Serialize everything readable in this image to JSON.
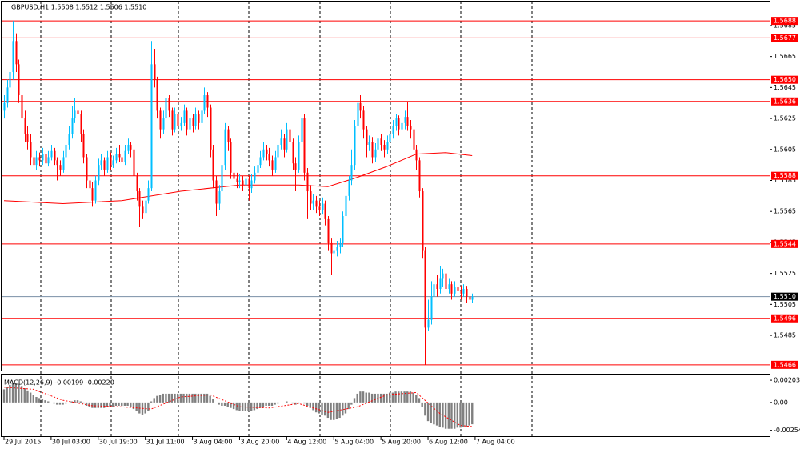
{
  "chart_data": {
    "type": "candlestick",
    "title": "GBPUSD,H1  1.5508 1.5512 1.5506 1.5510",
    "up_color": "#00bfff",
    "down_color": "#ff0000",
    "xlim": [
      -1.36,
      260
    ],
    "ylim": [
      1.54623,
      1.57015
    ],
    "yticks": [
      1.5685,
      1.5665,
      1.5645,
      1.5625,
      1.5605,
      1.5585,
      1.5565,
      1.5545,
      1.5525,
      1.5505,
      1.5485
    ],
    "xticks": [
      {
        "value": 0,
        "label": "29 Jul 2015"
      },
      {
        "value": 16,
        "label": "30 Jul 03:00"
      },
      {
        "value": 32,
        "label": "30 Jul 19:00"
      },
      {
        "value": 48,
        "label": "31 Jul 11:00"
      },
      {
        "value": 64,
        "label": "3 Aug 04:00"
      },
      {
        "value": 80,
        "label": "3 Aug 20:00"
      },
      {
        "value": 96,
        "label": "4 Aug 12:00"
      },
      {
        "value": 112,
        "label": "5 Aug 04:00"
      },
      {
        "value": 128,
        "label": "5 Aug 20:00"
      },
      {
        "value": 144,
        "label": "6 Aug 12:00"
      },
      {
        "value": 160,
        "label": "7 Aug 04:00"
      }
    ],
    "levels": [
      {
        "value": 1.5688,
        "label": "1.5688"
      },
      {
        "value": 1.5677,
        "label": "1.5677"
      },
      {
        "value": 1.565,
        "label": "1.5650"
      },
      {
        "value": 1.5636,
        "label": "1.5636"
      },
      {
        "value": 1.5588,
        "label": "1.5588"
      },
      {
        "value": 1.5544,
        "label": "1.5544"
      },
      {
        "value": 1.5496,
        "label": "1.5496"
      },
      {
        "value": 1.5466,
        "label": "1.5466"
      }
    ],
    "level_color": "#ff0000",
    "current": {
      "value": 1.551,
      "label": "1.5510"
    },
    "current_color": "#7a8fa6",
    "candles": [
      [
        1.563,
        1.564,
        1.5625,
        1.5635
      ],
      [
        1.5635,
        1.565,
        1.5632,
        1.5645
      ],
      [
        1.5645,
        1.5662,
        1.564,
        1.5655
      ],
      [
        1.5655,
        1.5688,
        1.565,
        1.5675
      ],
      [
        1.5675,
        1.568,
        1.5655,
        1.566
      ],
      [
        1.566,
        1.5663,
        1.5635,
        1.564
      ],
      [
        1.564,
        1.5645,
        1.562,
        1.5625
      ],
      [
        1.5625,
        1.563,
        1.561,
        1.5615
      ],
      [
        1.5615,
        1.562,
        1.5605,
        1.561
      ],
      [
        1.561,
        1.5615,
        1.5595,
        1.56
      ],
      [
        1.56,
        1.5605,
        1.559,
        1.5595
      ],
      [
        1.5595,
        1.5604,
        1.5592,
        1.56
      ],
      [
        1.56,
        1.5603,
        1.5594,
        1.5598
      ],
      [
        1.5598,
        1.5606,
        1.5595,
        1.5602
      ],
      [
        1.5602,
        1.5605,
        1.5592,
        1.5596
      ],
      [
        1.5596,
        1.5604,
        1.5594,
        1.56
      ],
      [
        1.56,
        1.5608,
        1.5598,
        1.5604
      ],
      [
        1.5604,
        1.5606,
        1.5595,
        1.5598
      ],
      [
        1.5598,
        1.56,
        1.5585,
        1.5595
      ],
      [
        1.5595,
        1.5598,
        1.5588,
        1.5592
      ],
      [
        1.5592,
        1.5604,
        1.559,
        1.56
      ],
      [
        1.56,
        1.5612,
        1.5598,
        1.5608
      ],
      [
        1.5608,
        1.562,
        1.5605,
        1.5615
      ],
      [
        1.5615,
        1.5633,
        1.5612,
        1.5625
      ],
      [
        1.5625,
        1.5638,
        1.5622,
        1.563
      ],
      [
        1.563,
        1.5635,
        1.5622,
        1.5628
      ],
      [
        1.5628,
        1.563,
        1.561,
        1.5615
      ],
      [
        1.5615,
        1.5618,
        1.5596,
        1.56
      ],
      [
        1.56,
        1.5602,
        1.558,
        1.5585
      ],
      [
        1.5585,
        1.559,
        1.5562,
        1.558
      ],
      [
        1.558,
        1.5584,
        1.5568,
        1.5572
      ],
      [
        1.5572,
        1.5588,
        1.557,
        1.5585
      ],
      [
        1.5585,
        1.5599,
        1.5582,
        1.5595
      ],
      [
        1.5595,
        1.5602,
        1.5592,
        1.5598
      ],
      [
        1.5598,
        1.56,
        1.5588,
        1.5592
      ],
      [
        1.5592,
        1.5604,
        1.559,
        1.56
      ],
      [
        1.56,
        1.5603,
        1.5592,
        1.5595
      ],
      [
        1.5595,
        1.5601,
        1.5593,
        1.5598
      ],
      [
        1.5598,
        1.5606,
        1.5596,
        1.5602
      ],
      [
        1.5602,
        1.5608,
        1.5597,
        1.56
      ],
      [
        1.56,
        1.5603,
        1.5593,
        1.5597
      ],
      [
        1.5597,
        1.5608,
        1.5595,
        1.5604
      ],
      [
        1.5604,
        1.5612,
        1.5602,
        1.5608
      ],
      [
        1.5608,
        1.561,
        1.56,
        1.5605
      ],
      [
        1.5605,
        1.5607,
        1.5584,
        1.5588
      ],
      [
        1.5588,
        1.559,
        1.5572,
        1.5578
      ],
      [
        1.5578,
        1.558,
        1.5555,
        1.5568
      ],
      [
        1.5568,
        1.5572,
        1.556,
        1.5564
      ],
      [
        1.5564,
        1.5576,
        1.5562,
        1.5572
      ],
      [
        1.5572,
        1.5585,
        1.557,
        1.558
      ],
      [
        1.558,
        1.5675,
        1.5578,
        1.566
      ],
      [
        1.566,
        1.567,
        1.5645,
        1.565
      ],
      [
        1.565,
        1.5652,
        1.5625,
        1.563
      ],
      [
        1.563,
        1.5632,
        1.5612,
        1.5618
      ],
      [
        1.5618,
        1.563,
        1.5615,
        1.5625
      ],
      [
        1.5625,
        1.5642,
        1.5622,
        1.5638
      ],
      [
        1.5638,
        1.564,
        1.5626,
        1.563
      ],
      [
        1.563,
        1.5632,
        1.5614,
        1.5618
      ],
      [
        1.5618,
        1.5632,
        1.5616,
        1.5628
      ],
      [
        1.5628,
        1.563,
        1.5616,
        1.562
      ],
      [
        1.562,
        1.5626,
        1.5617,
        1.5622
      ],
      [
        1.5622,
        1.5634,
        1.562,
        1.563
      ],
      [
        1.563,
        1.5632,
        1.5614,
        1.5618
      ],
      [
        1.5618,
        1.563,
        1.5616,
        1.5625
      ],
      [
        1.5625,
        1.5628,
        1.5616,
        1.562
      ],
      [
        1.562,
        1.5632,
        1.5618,
        1.5628
      ],
      [
        1.5628,
        1.563,
        1.5618,
        1.5622
      ],
      [
        1.5622,
        1.5634,
        1.562,
        1.563
      ],
      [
        1.563,
        1.5645,
        1.5628,
        1.564
      ],
      [
        1.564,
        1.5642,
        1.5626,
        1.5632
      ],
      [
        1.5632,
        1.5634,
        1.56,
        1.5605
      ],
      [
        1.5605,
        1.5608,
        1.558,
        1.5585
      ],
      [
        1.5585,
        1.5588,
        1.5562,
        1.557
      ],
      [
        1.557,
        1.5582,
        1.5566,
        1.5578
      ],
      [
        1.5578,
        1.56,
        1.5576,
        1.5595
      ],
      [
        1.5595,
        1.5622,
        1.5592,
        1.5618
      ],
      [
        1.5618,
        1.562,
        1.5604,
        1.561
      ],
      [
        1.561,
        1.5612,
        1.5586,
        1.559
      ],
      [
        1.559,
        1.5593,
        1.5582,
        1.5586
      ],
      [
        1.5586,
        1.559,
        1.558,
        1.5584
      ],
      [
        1.5584,
        1.5589,
        1.558,
        1.5585
      ],
      [
        1.5585,
        1.5588,
        1.5578,
        1.5582
      ],
      [
        1.5582,
        1.559,
        1.558,
        1.5586
      ],
      [
        1.5586,
        1.5588,
        1.5572,
        1.558
      ],
      [
        1.558,
        1.5589,
        1.5577,
        1.5585
      ],
      [
        1.5585,
        1.5594,
        1.5583,
        1.559
      ],
      [
        1.559,
        1.5599,
        1.5588,
        1.5595
      ],
      [
        1.5595,
        1.5604,
        1.5593,
        1.56
      ],
      [
        1.56,
        1.561,
        1.5598,
        1.5605
      ],
      [
        1.5605,
        1.5608,
        1.5598,
        1.5602
      ],
      [
        1.5602,
        1.5606,
        1.5594,
        1.5598
      ],
      [
        1.5598,
        1.5601,
        1.5588,
        1.5592
      ],
      [
        1.5592,
        1.5604,
        1.559,
        1.56
      ],
      [
        1.56,
        1.5612,
        1.5598,
        1.5608
      ],
      [
        1.5608,
        1.5618,
        1.5605,
        1.5612
      ],
      [
        1.5612,
        1.5615,
        1.56,
        1.5605
      ],
      [
        1.5605,
        1.5622,
        1.5603,
        1.5618
      ],
      [
        1.5618,
        1.5621,
        1.5605,
        1.561
      ],
      [
        1.561,
        1.5612,
        1.5592,
        1.5596
      ],
      [
        1.5596,
        1.56,
        1.5578,
        1.5592
      ],
      [
        1.5592,
        1.5614,
        1.559,
        1.561
      ],
      [
        1.561,
        1.5635,
        1.5608,
        1.5625
      ],
      [
        1.5625,
        1.5628,
        1.5585,
        1.559
      ],
      [
        1.559,
        1.5593,
        1.556,
        1.5578
      ],
      [
        1.5578,
        1.5582,
        1.5566,
        1.557
      ],
      [
        1.557,
        1.5576,
        1.5566,
        1.5572
      ],
      [
        1.5572,
        1.5575,
        1.5564,
        1.5568
      ],
      [
        1.5568,
        1.5572,
        1.5562,
        1.5566
      ],
      [
        1.5566,
        1.5574,
        1.5563,
        1.557
      ],
      [
        1.557,
        1.5572,
        1.5556,
        1.556
      ],
      [
        1.556,
        1.5562,
        1.554,
        1.5545
      ],
      [
        1.5545,
        1.5548,
        1.5524,
        1.5538
      ],
      [
        1.5538,
        1.5544,
        1.5534,
        1.554
      ],
      [
        1.554,
        1.5546,
        1.5536,
        1.5542
      ],
      [
        1.5542,
        1.5548,
        1.5538,
        1.5545
      ],
      [
        1.5545,
        1.5565,
        1.5542,
        1.5562
      ],
      [
        1.5562,
        1.5578,
        1.556,
        1.5575
      ],
      [
        1.5575,
        1.5588,
        1.5572,
        1.5585
      ],
      [
        1.5585,
        1.5605,
        1.5582,
        1.5595
      ],
      [
        1.5595,
        1.5624,
        1.5592,
        1.562
      ],
      [
        1.562,
        1.565,
        1.5618,
        1.5635
      ],
      [
        1.5635,
        1.564,
        1.5625,
        1.563
      ],
      [
        1.563,
        1.5633,
        1.5612,
        1.5618
      ],
      [
        1.5618,
        1.562,
        1.56,
        1.5608
      ],
      [
        1.5608,
        1.5614,
        1.5604,
        1.561
      ],
      [
        1.561,
        1.5613,
        1.5596,
        1.56
      ],
      [
        1.56,
        1.5609,
        1.5597,
        1.5605
      ],
      [
        1.5605,
        1.5616,
        1.5602,
        1.5612
      ],
      [
        1.5612,
        1.5615,
        1.5604,
        1.5608
      ],
      [
        1.5608,
        1.5611,
        1.56,
        1.5605
      ],
      [
        1.5605,
        1.5614,
        1.5602,
        1.561
      ],
      [
        1.561,
        1.5619,
        1.5607,
        1.5615
      ],
      [
        1.5615,
        1.5624,
        1.5612,
        1.562
      ],
      [
        1.562,
        1.5628,
        1.5617,
        1.5625
      ],
      [
        1.5625,
        1.5627,
        1.5614,
        1.5618
      ],
      [
        1.5618,
        1.5626,
        1.5615,
        1.5622
      ],
      [
        1.5622,
        1.563,
        1.5618,
        1.5626
      ],
      [
        1.5626,
        1.5636,
        1.5617,
        1.562
      ],
      [
        1.562,
        1.5624,
        1.5612,
        1.5618
      ],
      [
        1.5618,
        1.562,
        1.56,
        1.5605
      ],
      [
        1.5605,
        1.5608,
        1.5592,
        1.5598
      ],
      [
        1.5598,
        1.56,
        1.5574,
        1.5578
      ],
      [
        1.5578,
        1.558,
        1.5535,
        1.554
      ],
      [
        1.554,
        1.5542,
        1.5466,
        1.549
      ],
      [
        1.549,
        1.5508,
        1.5488,
        1.5495
      ],
      [
        1.5495,
        1.552,
        1.5492,
        1.551
      ],
      [
        1.551,
        1.553,
        1.5506,
        1.5518
      ],
      [
        1.5518,
        1.5524,
        1.551,
        1.5515
      ],
      [
        1.5515,
        1.553,
        1.5512,
        1.5522
      ],
      [
        1.5522,
        1.5528,
        1.5516,
        1.5525
      ],
      [
        1.5525,
        1.5527,
        1.5511,
        1.5515
      ],
      [
        1.5515,
        1.5522,
        1.5512,
        1.5518
      ],
      [
        1.5518,
        1.552,
        1.5508,
        1.5512
      ],
      [
        1.5512,
        1.552,
        1.551,
        1.5516
      ],
      [
        1.5516,
        1.5518,
        1.551,
        1.5514
      ],
      [
        1.5514,
        1.5517,
        1.5508,
        1.5512
      ],
      [
        1.5512,
        1.5518,
        1.551,
        1.5515
      ],
      [
        1.5515,
        1.5517,
        1.5506,
        1.551
      ],
      [
        1.551,
        1.5514,
        1.5496,
        1.5508
      ],
      [
        1.5508,
        1.5512,
        1.5506,
        1.551
      ]
    ],
    "ma": {
      "color": "#ff0000",
      "x": [
        0,
        20,
        40,
        60,
        80,
        100,
        110,
        120,
        130,
        140,
        150,
        159
      ],
      "values": [
        1.5572,
        1.557,
        1.5572,
        1.5578,
        1.5582,
        1.5582,
        1.5581,
        1.5587,
        1.5594,
        1.5602,
        1.5603,
        1.5601
      ]
    },
    "macd": {
      "label": "MACD(12,26,9) -0.00199 -0.00220",
      "color": "#808080",
      "y2lim": [
        -0.00315,
        0.00262
      ],
      "y2ticks": [
        0.00203,
        {
          "value": 0,
          "label": "0.00"
        },
        -0.00254
      ],
      "histogram": [
        0.0012,
        0.0014,
        0.0016,
        0.0018,
        0.0018,
        0.0017,
        0.0015,
        0.0013,
        0.0011,
        0.0009,
        0.0007,
        0.0005,
        0.0004,
        0.0003,
        0.0002,
        0.0001,
        0,
        -0.0001,
        -0.0002,
        -0.0002,
        -0.0002,
        -0.0001,
        0,
        0.0001,
        0.0002,
        0.0002,
        0.0001,
        -0.0001,
        -0.0003,
        -0.0004,
        -0.0005,
        -0.0005,
        -0.0005,
        -0.0005,
        -0.0005,
        -0.0004,
        -0.0004,
        -0.0004,
        -0.0003,
        -0.0003,
        -0.0003,
        -0.0003,
        -0.0003,
        -0.0004,
        -0.0006,
        -0.0008,
        -0.001,
        -0.0011,
        -0.001,
        -0.0008,
        0.0001,
        0.0004,
        0.0006,
        0.0007,
        0.0008,
        0.0008,
        0.0008,
        0.0008,
        0.0008,
        0.0008,
        0.0008,
        0.0008,
        0.0008,
        0.0008,
        0.0008,
        0.0008,
        0.0008,
        0.0008,
        0.0008,
        0.0008,
        0.0006,
        0.0003,
        0,
        -0.0002,
        -0.0003,
        -0.0003,
        -0.0004,
        -0.0005,
        -0.0006,
        -0.0007,
        -0.0008,
        -0.0008,
        -0.0008,
        -0.0008,
        -0.0008,
        -0.0007,
        -0.0006,
        -0.0005,
        -0.0004,
        -0.0003,
        -0.0003,
        -0.0003,
        -0.0002,
        -0.0001,
        0,
        0,
        0.0001,
        0,
        -0.0001,
        -0.0002,
        -0.0001,
        0,
        -0.0001,
        -0.0003,
        -0.0005,
        -0.0007,
        -0.0009,
        -0.001,
        -0.0011,
        -0.0012,
        -0.0014,
        -0.0016,
        -0.0016,
        -0.0015,
        -0.0014,
        -0.0012,
        -0.001,
        -0.0006,
        -0.0002,
        0.0004,
        0.0008,
        0.001,
        0.001,
        0.0009,
        0.0009,
        0.0008,
        0.0008,
        0.0008,
        0.0008,
        0.0008,
        0.0008,
        0.0009,
        0.0009,
        0.001,
        0.001,
        0.001,
        0.001,
        0.001,
        0.001,
        0.0009,
        0.0007,
        0.0004,
        -0.0004,
        -0.0012,
        -0.0017,
        -0.0019,
        -0.002,
        -0.0021,
        -0.0022,
        -0.0023,
        -0.0024,
        -0.0024,
        -0.0024,
        -0.0024,
        -0.0023,
        -0.0023,
        -0.0022,
        -0.0022,
        -0.0021,
        -0.00199
      ],
      "signal": {
        "color": "#ff0000",
        "x": [
          0,
          10,
          20,
          30,
          40,
          50,
          60,
          70,
          80,
          90,
          100,
          110,
          120,
          130,
          140,
          148,
          155,
          159
        ],
        "values": [
          0.0014,
          0.0012,
          0.0002,
          -0.0003,
          -0.0004,
          -0.0006,
          0.0005,
          0.0007,
          -0.0004,
          -0.0005,
          -0.0001,
          -0.0009,
          -0.0004,
          0.0007,
          0.0009,
          -0.001,
          -0.0021,
          -0.0022
        ]
      }
    }
  }
}
